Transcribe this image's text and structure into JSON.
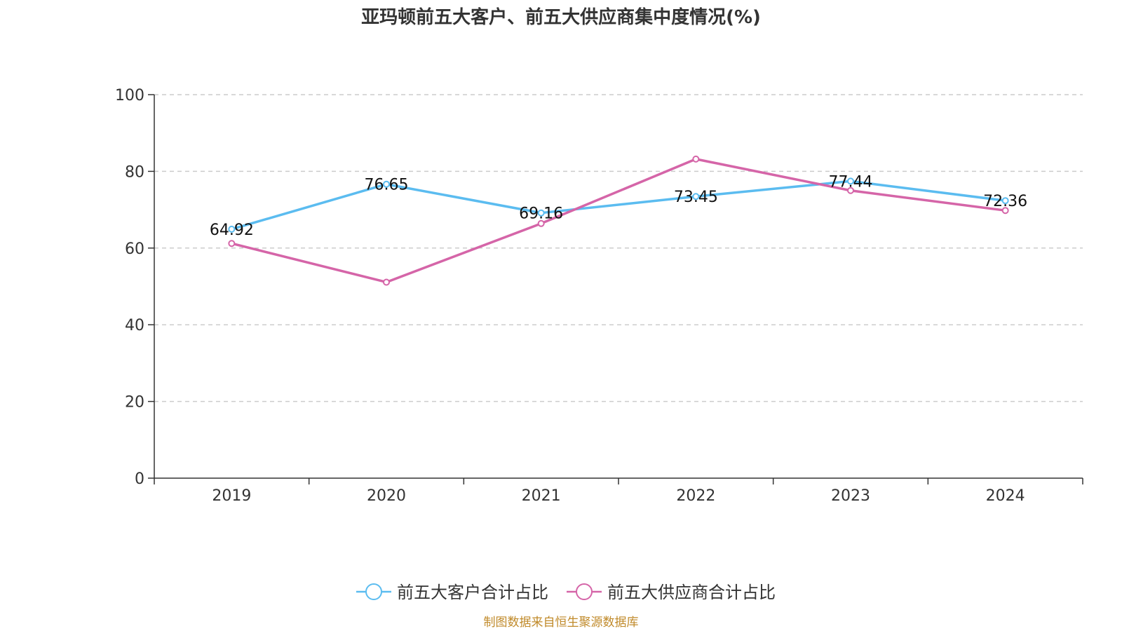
{
  "chart_data": {
    "type": "line",
    "title": "亚玛顿前五大客户、前五大供应商集中度情况(%)",
    "categories": [
      "2019",
      "2020",
      "2021",
      "2022",
      "2023",
      "2024"
    ],
    "ylim": [
      0,
      100
    ],
    "yticks": [
      "0",
      "20",
      "40",
      "60",
      "80",
      "100"
    ],
    "grid": true,
    "legend_position": "bottom-center",
    "series": [
      {
        "name": "前五大客户合计占比",
        "color": "#5bbcf0",
        "values": [
          64.92,
          76.65,
          69.16,
          73.45,
          77.44,
          72.36
        ],
        "labels": [
          "64.92",
          "76.65",
          "69.16",
          "73.45",
          "77.44",
          "72.36"
        ]
      },
      {
        "name": "前五大供应商合计占比",
        "color": "#d565a8",
        "values": [
          61.2,
          51.1,
          66.4,
          83.2,
          75.0,
          69.8
        ]
      }
    ],
    "source": "制图数据来自恒生聚源数据库"
  }
}
